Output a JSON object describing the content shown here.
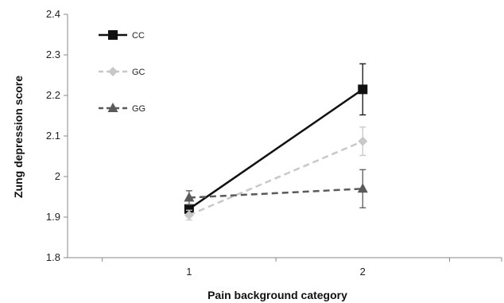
{
  "chart_data": {
    "type": "line",
    "title": "",
    "xlabel": "Pain background category",
    "ylabel": "Zung depression score",
    "categories": [
      "1",
      "2"
    ],
    "xlim": [
      0.3,
      2.8
    ],
    "ylim": [
      1.8,
      2.4
    ],
    "yticks": [
      "1.8",
      "1.9",
      "2",
      "2.1",
      "2.2",
      "2.3",
      "2.4"
    ],
    "grid": false,
    "legend_position": "top-left",
    "series": [
      {
        "name": "CC",
        "values": [
          1.92,
          2.215
        ],
        "errors": [
          0.01,
          0.063
        ],
        "color": "#111111",
        "line": "solid",
        "marker": "square"
      },
      {
        "name": "GC",
        "values": [
          1.905,
          2.087
        ],
        "errors": [
          0.012,
          0.035
        ],
        "color": "#c8c8c8",
        "line": "dashed",
        "marker": "diamond"
      },
      {
        "name": "GG",
        "values": [
          1.948,
          1.97
        ],
        "errors": [
          0.017,
          0.047
        ],
        "color": "#5a5a5a",
        "line": "dashed",
        "marker": "triangle"
      }
    ]
  }
}
